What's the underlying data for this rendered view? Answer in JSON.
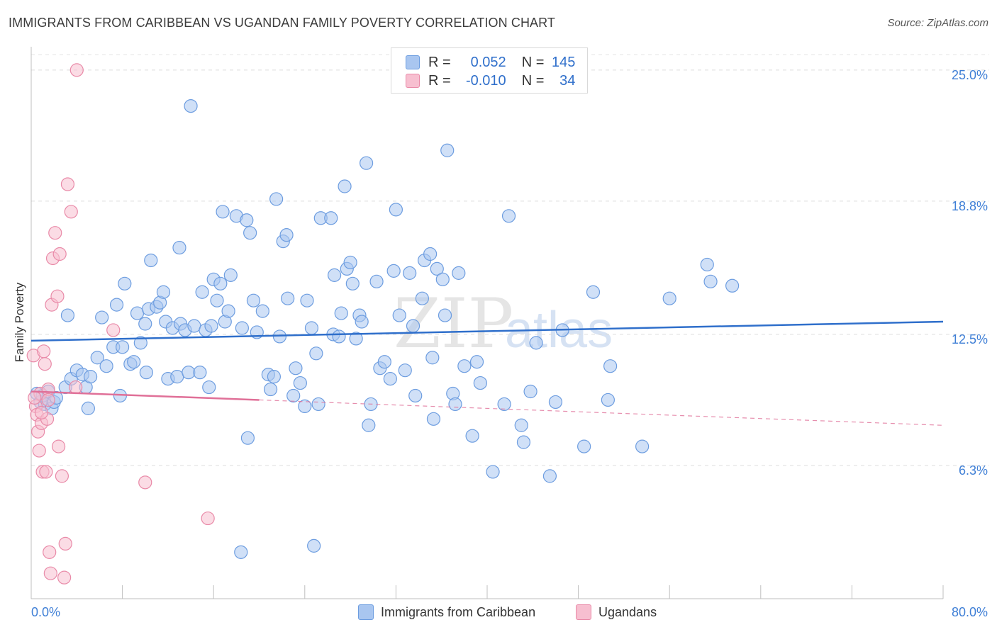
{
  "header": {
    "title": "IMMIGRANTS FROM CARIBBEAN VS UGANDAN FAMILY POVERTY CORRELATION CHART",
    "source": "Source: ZipAtlas.com"
  },
  "legend": {
    "rows": [
      {
        "r_label": "R =",
        "r_value": "0.052",
        "n_label": "N =",
        "n_value": "145",
        "color": "#a9c6f0",
        "border": "#6d9de0"
      },
      {
        "r_label": "R =",
        "r_value": "-0.010",
        "n_label": "N =",
        "n_value": "34",
        "color": "#f7bfd0",
        "border": "#e98aa8"
      }
    ]
  },
  "watermark": {
    "zip": "ZIP",
    "atlas": "atlas"
  },
  "chart_data": {
    "type": "scatter",
    "title": "IMMIGRANTS FROM CARIBBEAN VS UGANDAN FAMILY POVERTY CORRELATION CHART",
    "xlabel": "",
    "ylabel": "Family Poverty",
    "x_unit": "%",
    "y_unit": "%",
    "xlim": [
      0,
      80
    ],
    "ylim": [
      0,
      25.9
    ],
    "x_tick_labels": [
      "0.0%",
      "80.0%"
    ],
    "y_ticks": [
      6.3,
      12.5,
      18.8,
      25.0
    ],
    "y_tick_labels": [
      "6.3%",
      "12.5%",
      "18.8%",
      "25.0%"
    ],
    "grid": "horizontal dashed",
    "legend_position": "top-center",
    "series": [
      {
        "name": "Immigrants from Caribbean",
        "color": "#a9c6f0",
        "edge": "#6d9de0",
        "trend": {
          "x": [
            0,
            80
          ],
          "y": [
            12.2,
            13.1
          ],
          "color": "#2f6fcb"
        },
        "points": [
          [
            0.5,
            9.7
          ],
          [
            0.8,
            9.3
          ],
          [
            1.0,
            9.6
          ],
          [
            1.2,
            9.2
          ],
          [
            1.5,
            9.8
          ],
          [
            1.8,
            9.0
          ],
          [
            2.0,
            9.3
          ],
          [
            2.2,
            9.5
          ],
          [
            3.0,
            10.0
          ],
          [
            3.5,
            10.4
          ],
          [
            4.0,
            10.8
          ],
          [
            4.5,
            10.6
          ],
          [
            4.8,
            10.0
          ],
          [
            5.2,
            10.5
          ],
          [
            5.0,
            9.0
          ],
          [
            3.2,
            13.4
          ],
          [
            5.8,
            11.4
          ],
          [
            6.2,
            13.3
          ],
          [
            6.6,
            11.0
          ],
          [
            7.2,
            11.9
          ],
          [
            7.5,
            13.9
          ],
          [
            7.8,
            9.6
          ],
          [
            8.0,
            11.9
          ],
          [
            8.2,
            14.9
          ],
          [
            8.7,
            11.1
          ],
          [
            9.0,
            11.2
          ],
          [
            9.3,
            13.5
          ],
          [
            9.6,
            12.1
          ],
          [
            10.0,
            13.0
          ],
          [
            10.3,
            13.7
          ],
          [
            10.1,
            10.7
          ],
          [
            10.5,
            16.0
          ],
          [
            11.0,
            13.8
          ],
          [
            11.3,
            14.0
          ],
          [
            11.6,
            14.5
          ],
          [
            11.8,
            13.1
          ],
          [
            12.0,
            10.4
          ],
          [
            12.4,
            12.8
          ],
          [
            12.8,
            10.5
          ],
          [
            13.1,
            13.0
          ],
          [
            13.0,
            16.6
          ],
          [
            13.5,
            12.7
          ],
          [
            13.8,
            10.7
          ],
          [
            14.0,
            23.3
          ],
          [
            14.3,
            12.9
          ],
          [
            14.8,
            10.7
          ],
          [
            15.0,
            14.5
          ],
          [
            15.3,
            12.7
          ],
          [
            15.6,
            10.0
          ],
          [
            16.0,
            15.1
          ],
          [
            16.3,
            14.1
          ],
          [
            16.6,
            14.9
          ],
          [
            16.8,
            18.3
          ],
          [
            17.0,
            13.1
          ],
          [
            17.3,
            13.6
          ],
          [
            17.5,
            15.3
          ],
          [
            18.0,
            18.1
          ],
          [
            18.5,
            12.8
          ],
          [
            18.9,
            17.9
          ],
          [
            19.2,
            17.3
          ],
          [
            19.5,
            14.1
          ],
          [
            19.8,
            12.6
          ],
          [
            20.3,
            13.6
          ],
          [
            19.0,
            7.6
          ],
          [
            20.8,
            10.6
          ],
          [
            21.3,
            10.5
          ],
          [
            21.5,
            18.9
          ],
          [
            21.8,
            12.4
          ],
          [
            22.1,
            16.9
          ],
          [
            22.5,
            14.2
          ],
          [
            22.4,
            17.2
          ],
          [
            23.0,
            9.6
          ],
          [
            23.2,
            10.9
          ],
          [
            23.6,
            10.2
          ],
          [
            24.0,
            9.1
          ],
          [
            24.2,
            14.1
          ],
          [
            24.6,
            12.8
          ],
          [
            25.0,
            11.6
          ],
          [
            25.2,
            9.2
          ],
          [
            25.4,
            18.0
          ],
          [
            26.3,
            18.0
          ],
          [
            26.5,
            12.5
          ],
          [
            26.6,
            15.3
          ],
          [
            27.2,
            13.5
          ],
          [
            27.5,
            19.5
          ],
          [
            27.7,
            15.6
          ],
          [
            28.0,
            15.9
          ],
          [
            28.2,
            14.9
          ],
          [
            28.5,
            12.3
          ],
          [
            28.8,
            13.4
          ],
          [
            29.0,
            13.1
          ],
          [
            29.4,
            20.6
          ],
          [
            29.8,
            9.2
          ],
          [
            29.6,
            8.2
          ],
          [
            30.3,
            15.0
          ],
          [
            30.6,
            10.9
          ],
          [
            31.0,
            11.2
          ],
          [
            31.5,
            10.4
          ],
          [
            31.8,
            15.5
          ],
          [
            32.0,
            18.4
          ],
          [
            32.3,
            13.4
          ],
          [
            32.8,
            10.8
          ],
          [
            33.2,
            15.4
          ],
          [
            33.7,
            9.6
          ],
          [
            33.5,
            12.9
          ],
          [
            34.3,
            14.2
          ],
          [
            34.5,
            16.0
          ],
          [
            35.0,
            16.3
          ],
          [
            35.3,
            8.5
          ],
          [
            35.6,
            15.6
          ],
          [
            36.1,
            15.1
          ],
          [
            36.3,
            13.4
          ],
          [
            36.5,
            21.2
          ],
          [
            37.0,
            9.7
          ],
          [
            37.2,
            9.2
          ],
          [
            37.5,
            15.4
          ],
          [
            38.0,
            11.0
          ],
          [
            38.7,
            7.7
          ],
          [
            39.1,
            11.2
          ],
          [
            39.4,
            10.2
          ],
          [
            40.5,
            6.0
          ],
          [
            41.5,
            9.2
          ],
          [
            41.9,
            18.1
          ],
          [
            43.0,
            8.2
          ],
          [
            43.2,
            7.4
          ],
          [
            43.8,
            9.8
          ],
          [
            44.3,
            12.1
          ],
          [
            45.5,
            5.8
          ],
          [
            46.0,
            9.3
          ],
          [
            46.6,
            12.7
          ],
          [
            48.5,
            7.2
          ],
          [
            49.3,
            14.5
          ],
          [
            50.6,
            9.4
          ],
          [
            50.8,
            11.0
          ],
          [
            53.6,
            7.2
          ],
          [
            56.0,
            14.2
          ],
          [
            59.3,
            15.8
          ],
          [
            59.6,
            15.0
          ],
          [
            61.5,
            14.8
          ],
          [
            18.4,
            2.2
          ],
          [
            24.8,
            2.5
          ],
          [
            15.8,
            12.9
          ],
          [
            27.0,
            12.4
          ],
          [
            35.2,
            11.4
          ],
          [
            21.0,
            9.9
          ]
        ]
      },
      {
        "name": "Ugandans",
        "color": "#f7bfd0",
        "edge": "#e98aa8",
        "trend": {
          "x": [
            0,
            80
          ],
          "y": [
            9.8,
            8.2
          ],
          "color": "#e07098",
          "solid_until_x": 20
        },
        "points": [
          [
            0.2,
            11.5
          ],
          [
            0.4,
            9.1
          ],
          [
            0.5,
            8.7
          ],
          [
            0.6,
            7.9
          ],
          [
            0.7,
            7.0
          ],
          [
            0.8,
            9.7
          ],
          [
            0.9,
            8.3
          ],
          [
            1.0,
            6.0
          ],
          [
            1.1,
            11.7
          ],
          [
            1.2,
            11.1
          ],
          [
            1.3,
            6.0
          ],
          [
            1.4,
            8.5
          ],
          [
            1.5,
            9.9
          ],
          [
            1.6,
            2.2
          ],
          [
            1.7,
            1.2
          ],
          [
            1.8,
            13.9
          ],
          [
            1.9,
            16.1
          ],
          [
            2.1,
            17.3
          ],
          [
            2.3,
            14.3
          ],
          [
            2.5,
            16.3
          ],
          [
            2.7,
            5.8
          ],
          [
            2.9,
            1.0
          ],
          [
            3.0,
            2.6
          ],
          [
            3.2,
            19.6
          ],
          [
            3.5,
            18.3
          ],
          [
            3.9,
            10.0
          ],
          [
            4.0,
            25.0
          ],
          [
            7.2,
            12.7
          ],
          [
            10.0,
            5.5
          ],
          [
            15.5,
            3.8
          ],
          [
            2.4,
            7.2
          ],
          [
            0.9,
            8.8
          ],
          [
            1.5,
            9.4
          ],
          [
            0.3,
            9.5
          ]
        ]
      }
    ]
  }
}
